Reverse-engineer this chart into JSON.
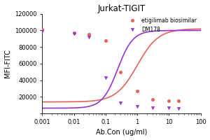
{
  "title": "Jurkat-TIGIT",
  "xlabel": "Ab.Con (ug/ml)",
  "ylabel": "MFI-FITC",
  "xlim": [
    0.001,
    100
  ],
  "ylim": [
    0,
    120000
  ],
  "yticks": [
    0,
    20000,
    40000,
    60000,
    80000,
    100000,
    120000
  ],
  "series": [
    {
      "label": "etigilimab biosimilar",
      "color": "#e8605a",
      "marker": "o",
      "x": [
        0.001,
        0.01,
        0.03,
        0.1,
        0.3,
        1.0,
        3.0,
        10.0,
        20.0
      ],
      "y": [
        101000,
        97000,
        95000,
        88000,
        50000,
        27000,
        17000,
        15500,
        15000
      ],
      "ec50_log": 0.0,
      "hill": 1.3,
      "top": 102000,
      "bottom": 14000
    },
    {
      "label": "DM178",
      "color": "#9b30d9",
      "marker": "v",
      "x": [
        0.001,
        0.01,
        0.03,
        0.1,
        0.3,
        1.0,
        3.0,
        10.0,
        20.0
      ],
      "y": [
        99000,
        96000,
        92000,
        43000,
        13000,
        9000,
        7000,
        7000,
        6500
      ],
      "ec50_log": -0.62,
      "hill": 1.8,
      "top": 100000,
      "bottom": 6500
    }
  ],
  "legend_loc": "upper right",
  "title_fontsize": 8.5,
  "label_fontsize": 7.0,
  "tick_fontsize": 6.0
}
